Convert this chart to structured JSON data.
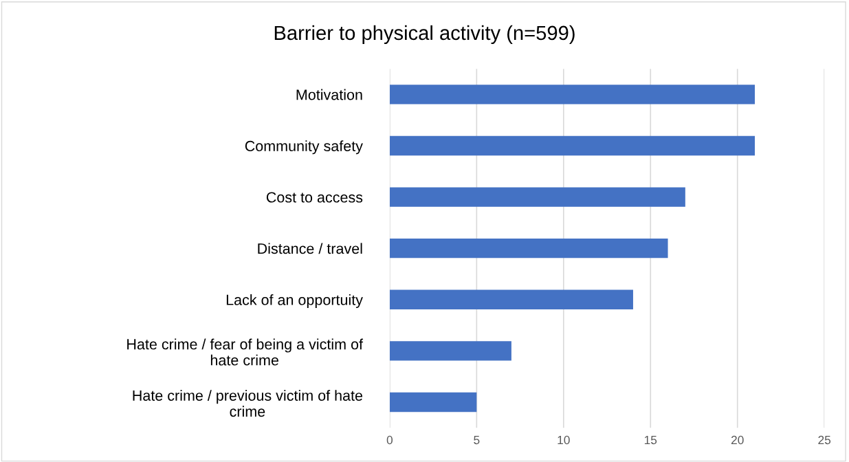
{
  "chart_data": {
    "type": "bar",
    "orientation": "horizontal",
    "title": "Barrier to physical activity (n=599)",
    "categories": [
      "Motivation",
      "Community safety",
      "Cost to access",
      "Distance / travel",
      "Lack of an opportuity",
      "Hate crime / fear of being a victim of hate crime",
      "Hate crime / previous victim of hate crime"
    ],
    "values": [
      21,
      21,
      17,
      16,
      14,
      7,
      5
    ],
    "color": "#4472c4",
    "xlim": [
      0,
      25
    ],
    "xticks": [
      0,
      5,
      10,
      15,
      20,
      25
    ],
    "grid": "x",
    "legend": false
  }
}
